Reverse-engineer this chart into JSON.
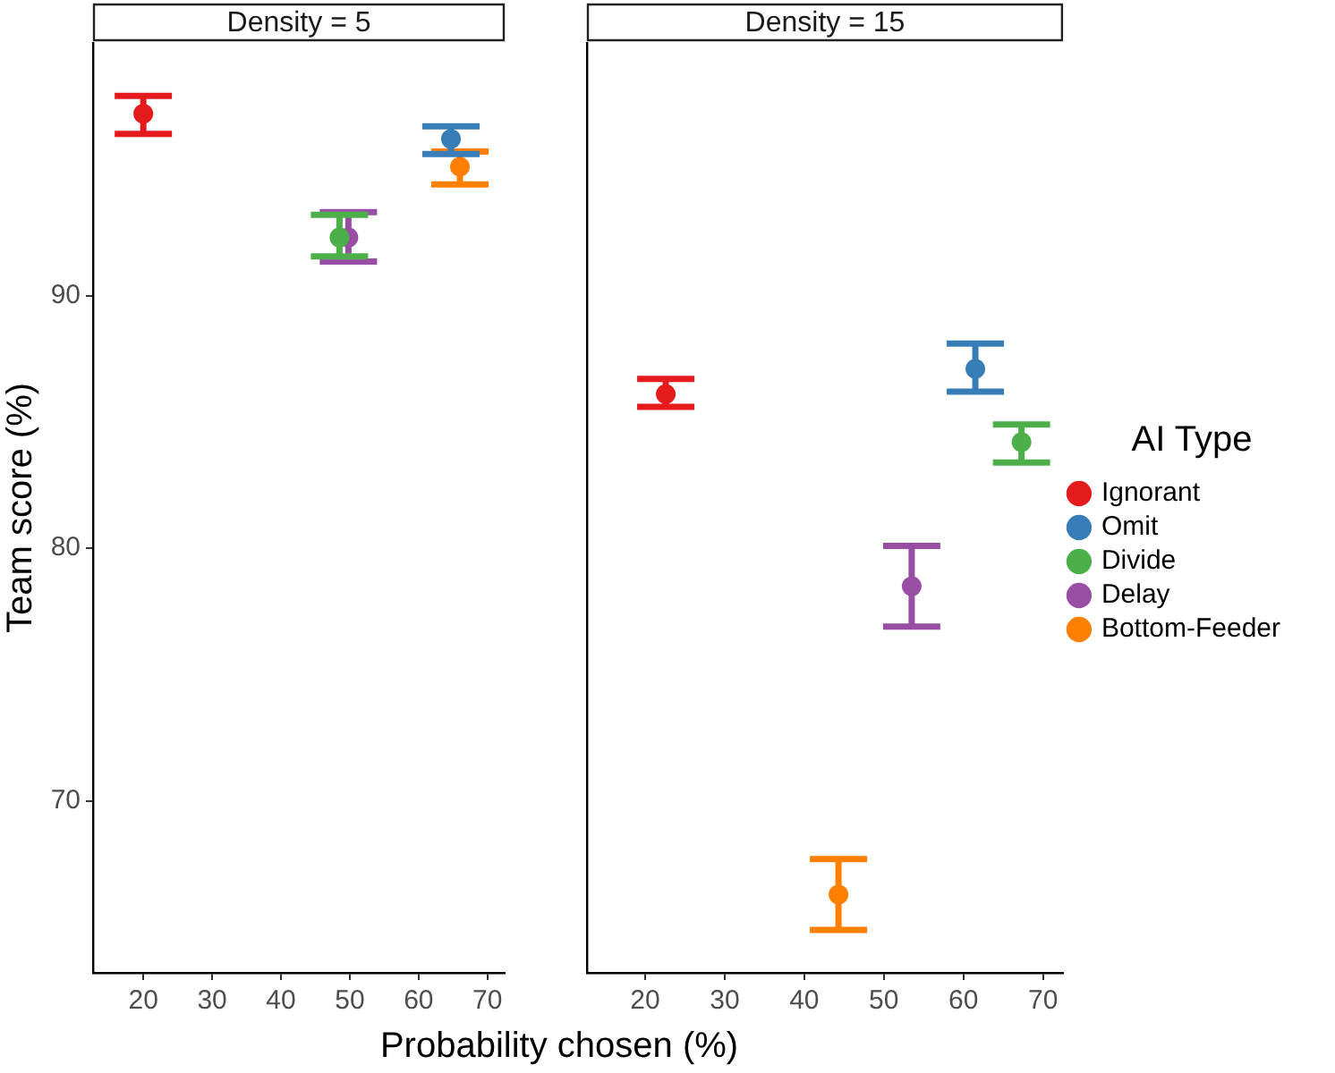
{
  "chart_data": [
    {
      "type": "scatter",
      "title": "Density = 5",
      "xlabel": "Probability chosen (%)",
      "ylabel": "Team score (%)",
      "xlim": [
        12.7,
        72.5
      ],
      "xticks": [
        20,
        30,
        40,
        50,
        60,
        70
      ],
      "ylim": [
        63.2,
        100
      ],
      "yticks": [
        70,
        80,
        90
      ],
      "legend": false,
      "marker": "circle",
      "series": [
        {
          "color": "#e41a1c",
          "x": [
            20
          ],
          "values": [
            97.2
          ],
          "errors": [
            [
              96.4,
              97.9
            ]
          ]
        },
        {
          "color": "#377eb8",
          "x": [
            64.7
          ],
          "values": [
            96.2
          ],
          "errors": [
            [
              95.6,
              96.7
            ]
          ]
        },
        {
          "color": "#4daf4a",
          "x": [
            48.5
          ],
          "values": [
            92.3
          ],
          "errors": [
            [
              91.55,
              93.2
            ]
          ]
        },
        {
          "color": "#984ea3",
          "x": [
            49.8
          ],
          "values": [
            92.3
          ],
          "errors": [
            [
              91.35,
              93.3
            ]
          ]
        },
        {
          "color": "#ff7f00",
          "x": [
            66
          ],
          "values": [
            95.1
          ],
          "errors": [
            [
              94.4,
              95.7
            ]
          ]
        }
      ]
    },
    {
      "type": "scatter",
      "title": "Density = 15",
      "legend_title": "AI Type",
      "xlim": [
        12.7,
        72.5
      ],
      "xticks": [
        20,
        30,
        40,
        50,
        60,
        70
      ],
      "ylim": [
        63.2,
        100
      ],
      "yticks": [
        70,
        80,
        90
      ],
      "tick_labels": "x",
      "legend": "right",
      "marker": "circle",
      "series": [
        {
          "name": "Ignorant",
          "color": "#e41a1c",
          "x": [
            22.6
          ],
          "values": [
            86.1
          ],
          "errors": [
            [
              85.6,
              86.7
            ]
          ]
        },
        {
          "name": "Omit",
          "color": "#377eb8",
          "x": [
            61.5
          ],
          "values": [
            87.1
          ],
          "errors": [
            [
              86.2,
              88.1
            ]
          ]
        },
        {
          "name": "Divide",
          "color": "#4daf4a",
          "x": [
            67.3
          ],
          "values": [
            84.2
          ],
          "errors": [
            [
              83.4,
              84.9
            ]
          ]
        },
        {
          "name": "Delay",
          "color": "#984ea3",
          "x": [
            53.5
          ],
          "values": [
            78.5
          ],
          "errors": [
            [
              76.9,
              80.1
            ]
          ]
        },
        {
          "name": "Bottom-Feeder",
          "color": "#ff7f00",
          "x": [
            44.3
          ],
          "values": [
            66.3
          ],
          "errors": [
            [
              64.9,
              67.7
            ]
          ]
        }
      ]
    }
  ]
}
